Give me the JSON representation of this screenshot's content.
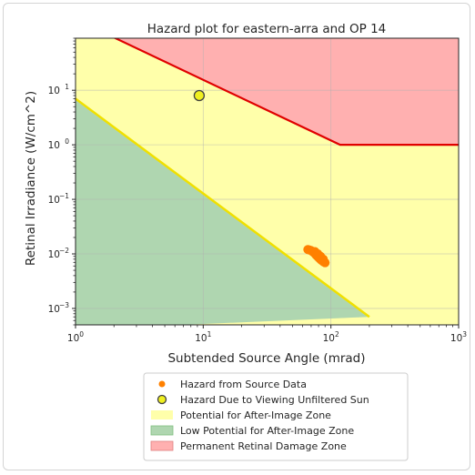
{
  "chart_data": {
    "type": "scatter",
    "title": "Hazard plot for eastern-arra and OP 14",
    "xlabel": "Subtended Source Angle (mrad)",
    "ylabel": "Retinal Irradiance (W/cm^2)",
    "x_scale": "log",
    "y_scale": "log",
    "xlim": [
      1,
      1000
    ],
    "ylim": [
      0.0005,
      90
    ],
    "x_ticks": [
      {
        "value": 1,
        "base": "10",
        "exp": "0"
      },
      {
        "value": 10,
        "base": "10",
        "exp": "1"
      },
      {
        "value": 100,
        "base": "10",
        "exp": "2"
      },
      {
        "value": 1000,
        "base": "10",
        "exp": "3"
      }
    ],
    "y_ticks": [
      {
        "value": 0.001,
        "base": "10",
        "exp": "−3"
      },
      {
        "value": 0.01,
        "base": "10",
        "exp": "−2"
      },
      {
        "value": 0.1,
        "base": "10",
        "exp": "−1"
      },
      {
        "value": 1,
        "base": "10",
        "exp": "0"
      },
      {
        "value": 10,
        "base": "10",
        "exp": "1"
      }
    ],
    "grid": true,
    "zones": [
      {
        "name": "Potential for After-Image Zone",
        "color": "#ffffaa",
        "boundary": "between low-potential line and permanent damage line"
      },
      {
        "name": "Low Potential for After-Image Zone",
        "color": "#afd6b0",
        "boundary_line": [
          [
            1,
            7.0
          ],
          [
            200,
            0.0007
          ]
        ]
      },
      {
        "name": "Permanent Retinal Damage Zone",
        "color": "#ffb0b0",
        "boundary_line": [
          [
            1,
            200
          ],
          [
            118,
            1.0
          ],
          [
            1000,
            1.0
          ]
        ]
      }
    ],
    "boundary_colors": {
      "low_potential": "#f0e000",
      "permanent_damage": "#e00000"
    },
    "series": [
      {
        "name": "Hazard from Source Data",
        "marker": "circle",
        "color": "#ff8000",
        "points": [
          [
            66,
            0.012
          ],
          [
            68,
            0.0118
          ],
          [
            70,
            0.0115
          ],
          [
            72,
            0.011
          ],
          [
            74,
            0.0104
          ],
          [
            76,
            0.0097
          ],
          [
            78,
            0.0091
          ],
          [
            80,
            0.0086
          ],
          [
            82,
            0.0081
          ],
          [
            84,
            0.0077
          ],
          [
            86,
            0.0074
          ],
          [
            88,
            0.0071
          ],
          [
            90,
            0.0069
          ],
          [
            75,
            0.011
          ],
          [
            79,
            0.01
          ],
          [
            83,
            0.009
          ],
          [
            87,
            0.008
          ]
        ]
      },
      {
        "name": "Hazard Due to Viewing Unfiltered Sun",
        "marker": "circle",
        "color": "#f0f020",
        "edgecolor": "#404040",
        "points": [
          [
            9.3,
            8.0
          ]
        ]
      }
    ],
    "legend": {
      "position": "bottom-center",
      "entries": [
        {
          "label": "Hazard from Source Data",
          "kind": "dot",
          "color": "#ff8000"
        },
        {
          "label": "Hazard Due to Viewing Unfiltered Sun",
          "kind": "ring",
          "color": "#f0f020",
          "edge": "#404040"
        },
        {
          "label": "Potential for After-Image Zone",
          "kind": "patch",
          "color": "#ffffaa"
        },
        {
          "label": "Low Potential for After-Image Zone",
          "kind": "patch",
          "color": "#afd6b0",
          "edge": "#7fbf80"
        },
        {
          "label": "Permanent Retinal Damage Zone",
          "kind": "patch",
          "color": "#ffb0b0",
          "edge": "#e08080"
        }
      ]
    }
  }
}
